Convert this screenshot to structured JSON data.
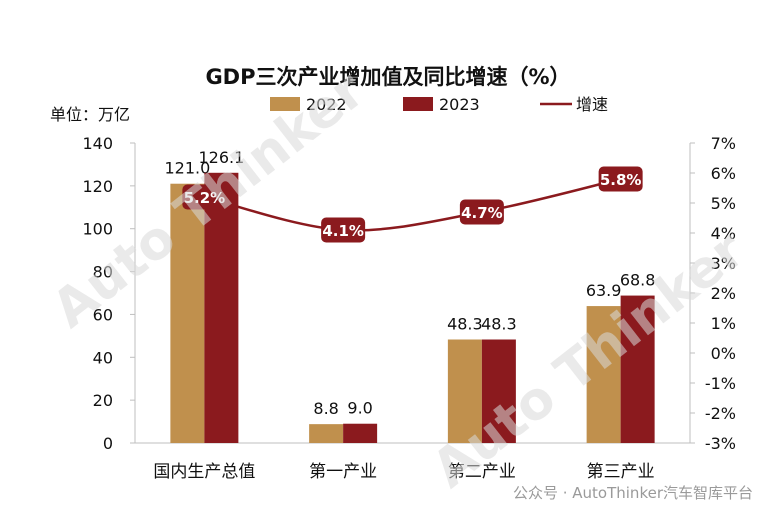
{
  "chart_data": {
    "type": "bar",
    "title": "GDP三次产业增加值及同比增速（%）",
    "unit_label": "单位：万亿",
    "categories": [
      "国内生产总值",
      "第一产业",
      "第二产业",
      "第三产业"
    ],
    "series": [
      {
        "name": "2022",
        "values": [
          121.0,
          8.8,
          48.3,
          63.9
        ],
        "color": "#c0904d"
      },
      {
        "name": "2023",
        "values": [
          126.1,
          9.0,
          48.3,
          68.8
        ],
        "color": "#8b1a1e"
      }
    ],
    "line_series": {
      "name": "增速",
      "values": [
        5.2,
        4.1,
        4.7,
        5.8
      ],
      "color": "#8b1a1e",
      "label_bg": "#8b1a1e"
    },
    "bar_labels": [
      [
        "121.0",
        "126.1"
      ],
      [
        "8.8",
        "9.0"
      ],
      [
        "48.3",
        "48.3"
      ],
      [
        "63.9",
        "68.8"
      ]
    ],
    "line_labels": [
      "5.2%",
      "4.1%",
      "4.7%",
      "5.8%"
    ],
    "ylim": [
      0,
      140
    ],
    "yticks": [
      "0",
      "20",
      "40",
      "60",
      "80",
      "100",
      "120",
      "140"
    ],
    "y2lim": [
      -3,
      7
    ],
    "y2ticks": [
      "-3%",
      "-2%",
      "-1%",
      "0%",
      "1%",
      "2%",
      "3%",
      "4%",
      "5%",
      "6%",
      "7%"
    ],
    "legend": [
      "2022",
      "2023",
      "增速"
    ],
    "legend_position": "top"
  },
  "watermark": "Auto Thinker",
  "footer": "公众号 · AutoThinker汽车智库平台"
}
